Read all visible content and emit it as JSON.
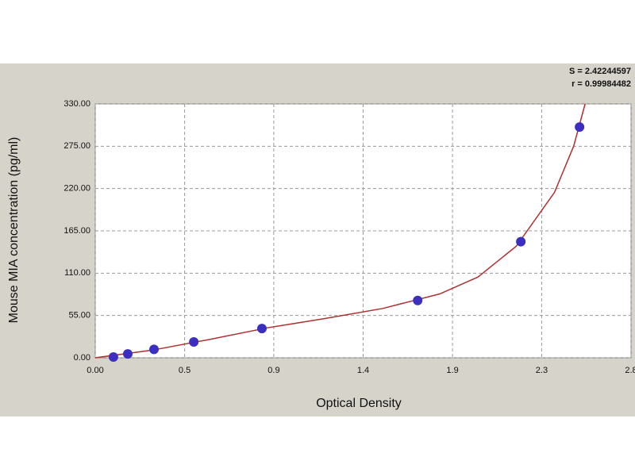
{
  "chart_data": {
    "type": "scatter",
    "x_label": "Optical Density",
    "y_label": "Mouse MIA concentration (pg/ml)",
    "annotations": [
      "S = 2.42244597",
      "r = 0.99984482"
    ],
    "points": {
      "color": "#3a2fc0",
      "x": [
        0.095,
        0.17,
        0.307,
        0.515,
        0.871,
        1.685,
        2.224,
        2.531
      ],
      "y": [
        1,
        5,
        11,
        20.6,
        38,
        74.5,
        151,
        300
      ]
    },
    "fit": {
      "color": "#b03030",
      "x": [
        0,
        0.3,
        0.6,
        0.9,
        1.2,
        1.5,
        1.8,
        2.0,
        2.2,
        2.4,
        2.5,
        2.56
      ],
      "y": [
        0,
        10,
        24,
        39,
        51,
        64,
        83,
        105,
        145,
        215,
        275,
        330
      ]
    },
    "xlim": [
      0,
      2.8
    ],
    "xticks": [
      {
        "value": 0,
        "label": "0.00"
      },
      {
        "value": 0.467,
        "label": "0.5"
      },
      {
        "value": 0.933,
        "label": "0.9"
      },
      {
        "value": 1.4,
        "label": "1.4"
      },
      {
        "value": 1.867,
        "label": "1.9"
      },
      {
        "value": 2.333,
        "label": "2.3"
      },
      {
        "value": 2.8,
        "label": "2.8"
      }
    ],
    "ylim": [
      0,
      330
    ],
    "yticks": [
      {
        "value": 0,
        "label": "0.00"
      },
      {
        "value": 55,
        "label": "55.00"
      },
      {
        "value": 110,
        "label": "110.00"
      },
      {
        "value": 165,
        "label": "165.00"
      },
      {
        "value": 220,
        "label": "220.00"
      },
      {
        "value": 275,
        "label": "275.00"
      },
      {
        "value": 330,
        "label": "330.00"
      }
    ],
    "grid": true
  }
}
